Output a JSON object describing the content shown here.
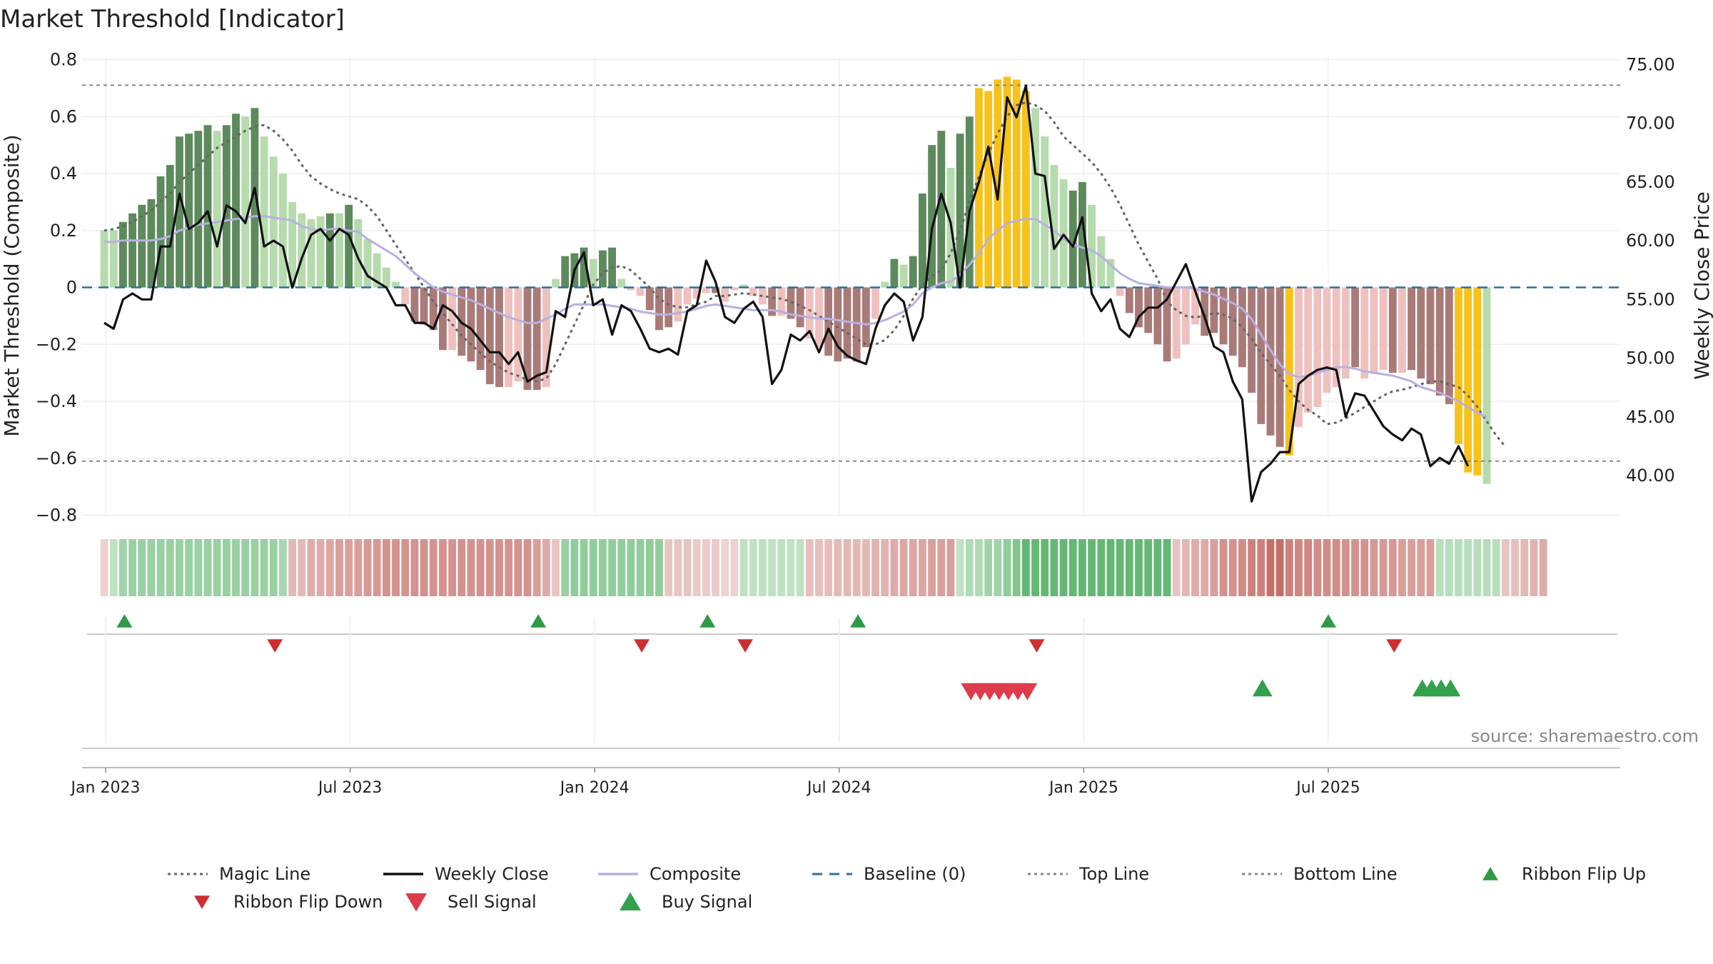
{
  "chart_data": {
    "type": "bar",
    "title": "Market Threshold [Indicator]",
    "ylabel_left": "Market Threshold (Composite)",
    "ylabel_right": "Weekly Close Price",
    "source": "source: sharemaestro.com",
    "ylim_left": [
      -0.8,
      0.8
    ],
    "ylim_right": [
      38,
      76
    ],
    "left_ticks": [
      "0.8",
      "0.6",
      "0.4",
      "0.2",
      "0",
      "−0.2",
      "−0.4",
      "−0.6",
      "−0.8"
    ],
    "right_ticks": [
      "75.00",
      "70.00",
      "65.00",
      "60.00",
      "55.00",
      "50.00",
      "45.00",
      "40.00"
    ],
    "x_tick_labels": [
      "Jan 2023",
      "Jul 2023",
      "Jan 2024",
      "Jul 2024",
      "Jan 2025",
      "Jul 2025"
    ],
    "x_tick_weeks": [
      0,
      26,
      52,
      78,
      104,
      130
    ],
    "top_line": 0.71,
    "bottom_line": -0.61,
    "grid": true,
    "colors": {
      "strong_up": "#5d8a5c",
      "weak_up": "#b6dbad",
      "strong_down": "#a97b78",
      "weak_down": "#eec1bf",
      "extreme": "#f7c21b",
      "close": "#111111",
      "composite": "#b8b0e2",
      "magic": "#666666",
      "baseline": "#2f6f9e",
      "flip_up": "#2e9a46",
      "flip_down": "#cc2f2f",
      "sell": "#dd3c4a",
      "buy": "#33a04c"
    },
    "composite_bars": [
      0.2,
      0.2,
      0.23,
      0.26,
      0.29,
      0.31,
      0.39,
      0.43,
      0.53,
      0.54,
      0.55,
      0.57,
      0.55,
      0.57,
      0.61,
      0.6,
      0.63,
      0.53,
      0.46,
      0.4,
      0.3,
      0.26,
      0.24,
      0.25,
      0.26,
      0.26,
      0.29,
      0.24,
      0.17,
      0.12,
      0.07,
      0.02,
      -0.06,
      -0.12,
      -0.13,
      -0.15,
      -0.22,
      -0.22,
      -0.24,
      -0.26,
      -0.29,
      -0.34,
      -0.35,
      -0.35,
      -0.33,
      -0.36,
      -0.36,
      -0.35,
      0.03,
      0.11,
      0.12,
      0.14,
      0.1,
      0.13,
      0.14,
      0.03,
      -0.01,
      -0.03,
      -0.08,
      -0.15,
      -0.14,
      -0.12,
      -0.06,
      -0.04,
      -0.02,
      -0.02,
      -0.05,
      -0.01,
      0.01,
      -0.03,
      -0.06,
      -0.1,
      -0.1,
      -0.11,
      -0.14,
      -0.18,
      -0.21,
      -0.24,
      -0.26,
      -0.25,
      -0.26,
      -0.21,
      -0.11,
      0.02,
      0.1,
      0.08,
      0.11,
      0.33,
      0.5,
      0.55,
      0.42,
      0.54,
      0.6,
      0.7,
      0.69,
      0.73,
      0.74,
      0.73,
      0.69,
      0.63,
      0.53,
      0.43,
      0.38,
      0.34,
      0.37,
      0.29,
      0.18,
      0.1,
      -0.03,
      -0.09,
      -0.14,
      -0.16,
      -0.2,
      -0.26,
      -0.25,
      -0.2,
      -0.13,
      -0.17,
      -0.16,
      -0.2,
      -0.24,
      -0.28,
      -0.37,
      -0.48,
      -0.52,
      -0.56,
      -0.59,
      -0.49,
      -0.44,
      -0.42,
      -0.37,
      -0.35,
      -0.32,
      -0.28,
      -0.32,
      -0.3,
      -0.29,
      -0.3,
      -0.3,
      -0.29,
      -0.32,
      -0.34,
      -0.38,
      -0.41,
      -0.55,
      -0.65,
      -0.66,
      -0.69
    ],
    "bar_kind": [
      "weak_up",
      "weak_up",
      "strong_up",
      "strong_up",
      "strong_up",
      "strong_up",
      "strong_up",
      "strong_up",
      "strong_up",
      "strong_up",
      "strong_up",
      "strong_up",
      "weak_up",
      "strong_up",
      "strong_up",
      "weak_up",
      "strong_up",
      "weak_up",
      "weak_up",
      "weak_up",
      "weak_up",
      "weak_up",
      "weak_up",
      "weak_up",
      "strong_up",
      "weak_up",
      "strong_up",
      "weak_up",
      "weak_up",
      "weak_up",
      "weak_up",
      "weak_up",
      "weak_down",
      "strong_down",
      "strong_down",
      "strong_down",
      "strong_down",
      "weak_down",
      "strong_down",
      "strong_down",
      "strong_down",
      "strong_down",
      "strong_down",
      "weak_down",
      "weak_down",
      "strong_down",
      "strong_down",
      "weak_down",
      "weak_up",
      "strong_up",
      "strong_up",
      "strong_up",
      "weak_up",
      "strong_up",
      "strong_up",
      "weak_up",
      "weak_down",
      "weak_down",
      "strong_down",
      "strong_down",
      "strong_down",
      "weak_down",
      "weak_down",
      "weak_down",
      "weak_down",
      "strong_down",
      "weak_down",
      "weak_down",
      "weak_up",
      "weak_down",
      "weak_down",
      "strong_down",
      "weak_down",
      "strong_down",
      "strong_down",
      "weak_down",
      "weak_down",
      "strong_down",
      "strong_down",
      "strong_down",
      "strong_down",
      "strong_down",
      "weak_down",
      "weak_up",
      "strong_up",
      "weak_up",
      "strong_up",
      "strong_up",
      "strong_up",
      "strong_up",
      "weak_up",
      "strong_up",
      "strong_up",
      "extreme",
      "extreme",
      "extreme",
      "extreme",
      "extreme",
      "extreme",
      "weak_up",
      "weak_up",
      "weak_up",
      "weak_up",
      "strong_up",
      "strong_up",
      "weak_up",
      "weak_up",
      "weak_up",
      "weak_down",
      "strong_down",
      "strong_down",
      "strong_down",
      "strong_down",
      "strong_down",
      "weak_down",
      "weak_down",
      "weak_down",
      "strong_down",
      "strong_down",
      "strong_down",
      "strong_down",
      "strong_down",
      "strong_down",
      "strong_down",
      "strong_down",
      "strong_down",
      "extreme",
      "weak_down",
      "weak_down",
      "weak_down",
      "weak_down",
      "weak_down",
      "weak_down",
      "strong_down",
      "weak_down",
      "weak_down",
      "weak_down",
      "strong_down",
      "weak_down",
      "strong_down",
      "strong_down",
      "strong_down",
      "strong_down",
      "strong_down",
      "extreme",
      "extreme",
      "extreme"
    ],
    "weekly_close": [
      53,
      52.5,
      55,
      55.5,
      55,
      55,
      59.5,
      59.5,
      64,
      61,
      61.5,
      62.5,
      59.5,
      63,
      62.5,
      61.5,
      64.5,
      59.5,
      60,
      59.5,
      56,
      58.5,
      60.5,
      61,
      60,
      61,
      60.5,
      58.5,
      57,
      56.5,
      56,
      54.5,
      54.5,
      53,
      53,
      52.5,
      54.5,
      54,
      53,
      52.5,
      51.5,
      50.5,
      50.5,
      49.5,
      50.5,
      48,
      48.5,
      48.8,
      54,
      53.5,
      57.5,
      59,
      54.5,
      55,
      52,
      54.5,
      54,
      52.5,
      50.8,
      50.5,
      50.8,
      50.3,
      54,
      54.5,
      58.3,
      56.5,
      53.5,
      53,
      54.2,
      54.8,
      53.5,
      47.8,
      49,
      52,
      51.5,
      52.3,
      50.5,
      52.5,
      51,
      50.2,
      49.8,
      49.5,
      52.5,
      54.5,
      55.5,
      54.8,
      51.5,
      53.5,
      61,
      64,
      61.5,
      56,
      62.5,
      65,
      68,
      63.5,
      72.2,
      70.5,
      73.2,
      65.7,
      65.5,
      59.3,
      60.5,
      59.5,
      62,
      55.5,
      54,
      55,
      52.5,
      51.8,
      53.5,
      54.3,
      54.3,
      55,
      56.5,
      58,
      55.7,
      53.5,
      51,
      50.5,
      48,
      46.5,
      37.8,
      40.3,
      41,
      42,
      42,
      47.8,
      48.5,
      49,
      49.2,
      49,
      45,
      47,
      46.8,
      45.5,
      44.2,
      43.5,
      43,
      44,
      43.5,
      40.8,
      41.5,
      41,
      42.5,
      40.8
    ],
    "composite_line": [
      0.16,
      0.16,
      0.165,
      0.165,
      0.165,
      0.165,
      0.17,
      0.18,
      0.2,
      0.21,
      0.22,
      0.225,
      0.23,
      0.235,
      0.24,
      0.245,
      0.25,
      0.25,
      0.245,
      0.24,
      0.235,
      0.215,
      0.205,
      0.2,
      0.205,
      0.205,
      0.2,
      0.195,
      0.17,
      0.15,
      0.13,
      0.11,
      0.08,
      0.05,
      0.025,
      0.0,
      -0.015,
      -0.025,
      -0.035,
      -0.045,
      -0.06,
      -0.075,
      -0.09,
      -0.105,
      -0.115,
      -0.125,
      -0.125,
      -0.11,
      -0.095,
      -0.075,
      -0.06,
      -0.06,
      -0.06,
      -0.06,
      -0.065,
      -0.07,
      -0.075,
      -0.085,
      -0.09,
      -0.095,
      -0.095,
      -0.09,
      -0.085,
      -0.075,
      -0.065,
      -0.06,
      -0.065,
      -0.07,
      -0.075,
      -0.08,
      -0.08,
      -0.08,
      -0.085,
      -0.095,
      -0.1,
      -0.105,
      -0.11,
      -0.11,
      -0.115,
      -0.12,
      -0.125,
      -0.13,
      -0.125,
      -0.115,
      -0.1,
      -0.085,
      -0.06,
      -0.02,
      0.0,
      0.015,
      0.02,
      0.045,
      0.08,
      0.12,
      0.17,
      0.2,
      0.225,
      0.235,
      0.24,
      0.24,
      0.22,
      0.2,
      0.17,
      0.15,
      0.14,
      0.13,
      0.11,
      0.08,
      0.05,
      0.03,
      0.015,
      0.01,
      0.005,
      0.0,
      0.0,
      0.0,
      -0.005,
      -0.015,
      -0.025,
      -0.04,
      -0.055,
      -0.075,
      -0.11,
      -0.165,
      -0.22,
      -0.27,
      -0.305,
      -0.315,
      -0.31,
      -0.3,
      -0.29,
      -0.28,
      -0.28,
      -0.285,
      -0.295,
      -0.3,
      -0.305,
      -0.31,
      -0.32,
      -0.33,
      -0.35,
      -0.36,
      -0.37,
      -0.385,
      -0.4,
      -0.42,
      -0.44,
      -0.455
    ],
    "magic_line": [
      0.2,
      0.205,
      0.215,
      0.23,
      0.25,
      0.27,
      0.3,
      0.33,
      0.37,
      0.4,
      0.43,
      0.46,
      0.49,
      0.51,
      0.53,
      0.55,
      0.565,
      0.57,
      0.55,
      0.52,
      0.48,
      0.43,
      0.39,
      0.365,
      0.345,
      0.33,
      0.32,
      0.31,
      0.285,
      0.25,
      0.2,
      0.15,
      0.1,
      0.05,
      0.0,
      -0.05,
      -0.09,
      -0.13,
      -0.17,
      -0.2,
      -0.23,
      -0.26,
      -0.28,
      -0.3,
      -0.31,
      -0.325,
      -0.33,
      -0.32,
      -0.27,
      -0.2,
      -0.13,
      -0.06,
      0.01,
      0.05,
      0.07,
      0.075,
      0.06,
      0.03,
      0.0,
      -0.04,
      -0.06,
      -0.07,
      -0.07,
      -0.06,
      -0.05,
      -0.03,
      -0.03,
      -0.025,
      -0.02,
      -0.025,
      -0.03,
      -0.035,
      -0.04,
      -0.05,
      -0.065,
      -0.08,
      -0.1,
      -0.12,
      -0.14,
      -0.16,
      -0.18,
      -0.2,
      -0.2,
      -0.185,
      -0.15,
      -0.1,
      -0.04,
      0.01,
      0.04,
      0.06,
      0.12,
      0.2,
      0.3,
      0.39,
      0.47,
      0.54,
      0.6,
      0.64,
      0.65,
      0.64,
      0.62,
      0.58,
      0.53,
      0.5,
      0.47,
      0.44,
      0.4,
      0.35,
      0.29,
      0.22,
      0.15,
      0.09,
      0.03,
      -0.05,
      -0.08,
      -0.1,
      -0.105,
      -0.1,
      -0.09,
      -0.095,
      -0.11,
      -0.14,
      -0.18,
      -0.23,
      -0.27,
      -0.31,
      -0.36,
      -0.4,
      -0.43,
      -0.45,
      -0.48,
      -0.475,
      -0.46,
      -0.44,
      -0.42,
      -0.4,
      -0.38,
      -0.365,
      -0.36,
      -0.35,
      -0.34,
      -0.33,
      -0.33,
      -0.34,
      -0.35,
      -0.38,
      -0.42,
      -0.47,
      -0.52,
      -0.56
    ],
    "ribbon": [
      -0.1,
      0.2,
      0.4,
      0.45,
      0.45,
      0.45,
      0.45,
      0.45,
      0.45,
      0.45,
      0.45,
      0.45,
      0.45,
      0.45,
      0.45,
      0.45,
      0.45,
      0.45,
      0.45,
      0.35,
      -0.3,
      -0.3,
      -0.4,
      -0.4,
      -0.45,
      -0.5,
      -0.5,
      -0.5,
      -0.55,
      -0.55,
      -0.6,
      -0.6,
      -0.6,
      -0.6,
      -0.6,
      -0.6,
      -0.6,
      -0.6,
      -0.6,
      -0.6,
      -0.6,
      -0.6,
      -0.6,
      -0.6,
      -0.6,
      -0.6,
      -0.5,
      -0.4,
      -0.2,
      0.45,
      0.5,
      0.5,
      0.5,
      0.5,
      0.5,
      0.5,
      0.5,
      0.5,
      0.5,
      0.5,
      -0.2,
      -0.2,
      -0.2,
      -0.15,
      -0.15,
      -0.15,
      -0.1,
      -0.1,
      0.2,
      0.2,
      0.2,
      0.2,
      0.2,
      0.2,
      0.2,
      -0.25,
      -0.25,
      -0.25,
      -0.3,
      -0.3,
      -0.3,
      -0.3,
      -0.35,
      -0.35,
      -0.4,
      -0.45,
      -0.45,
      -0.45,
      -0.5,
      -0.5,
      -0.5,
      0.2,
      0.3,
      0.3,
      0.4,
      0.4,
      0.5,
      0.6,
      0.8,
      0.8,
      0.8,
      0.8,
      0.8,
      0.8,
      0.8,
      0.8,
      0.8,
      0.8,
      0.8,
      0.8,
      0.8,
      0.8,
      0.8,
      0.8,
      -0.2,
      -0.3,
      -0.4,
      -0.4,
      -0.5,
      -0.6,
      -0.6,
      -0.65,
      -0.75,
      -0.75,
      -0.9,
      -0.9,
      -0.75,
      -0.7,
      -0.7,
      -0.65,
      -0.65,
      -0.65,
      -0.6,
      -0.6,
      -0.6,
      -0.55,
      -0.55,
      -0.55,
      -0.5,
      -0.5,
      -0.5,
      -0.5,
      0.25,
      0.25,
      0.25,
      0.25,
      0.25,
      0.25,
      0.25,
      -0.2,
      -0.25,
      -0.3,
      -0.35,
      -0.4
    ],
    "ribbon_flip_up_weeks": [
      2,
      46,
      64,
      80,
      130
    ],
    "ribbon_flip_down_weeks": [
      18,
      57,
      68,
      99,
      137
    ],
    "sell_signal_weeks": [
      92,
      93,
      94,
      95,
      96,
      97,
      98
    ],
    "buy_signal_weeks": [
      123,
      140,
      141,
      142,
      143
    ]
  },
  "legend": [
    {
      "key": "magic",
      "label": "Magic Line",
      "style": "dotted",
      "color": "#666666"
    },
    {
      "key": "close",
      "label": "Weekly Close",
      "style": "solid",
      "color": "#111111"
    },
    {
      "key": "composite",
      "label": "Composite",
      "style": "solid",
      "color": "#b8b0e2"
    },
    {
      "key": "baseline",
      "label": "Baseline (0)",
      "style": "dashed",
      "color": "#2f6f9e"
    },
    {
      "key": "topline",
      "label": "Top Line",
      "style": "dotted",
      "color": "#888888"
    },
    {
      "key": "bottomline",
      "label": "Bottom Line",
      "style": "dotted",
      "color": "#888888"
    },
    {
      "key": "flipup",
      "label": "Ribbon Flip Up",
      "style": "tri-up",
      "color": "#2e9a46"
    },
    {
      "key": "flipdown",
      "label": "Ribbon Flip Down",
      "style": "tri-down",
      "color": "#cc2f2f"
    },
    {
      "key": "sell",
      "label": "Sell Signal",
      "style": "tri-down-lg",
      "color": "#dd3c4a"
    },
    {
      "key": "buy",
      "label": "Buy Signal",
      "style": "tri-up-lg",
      "color": "#33a04c"
    }
  ]
}
